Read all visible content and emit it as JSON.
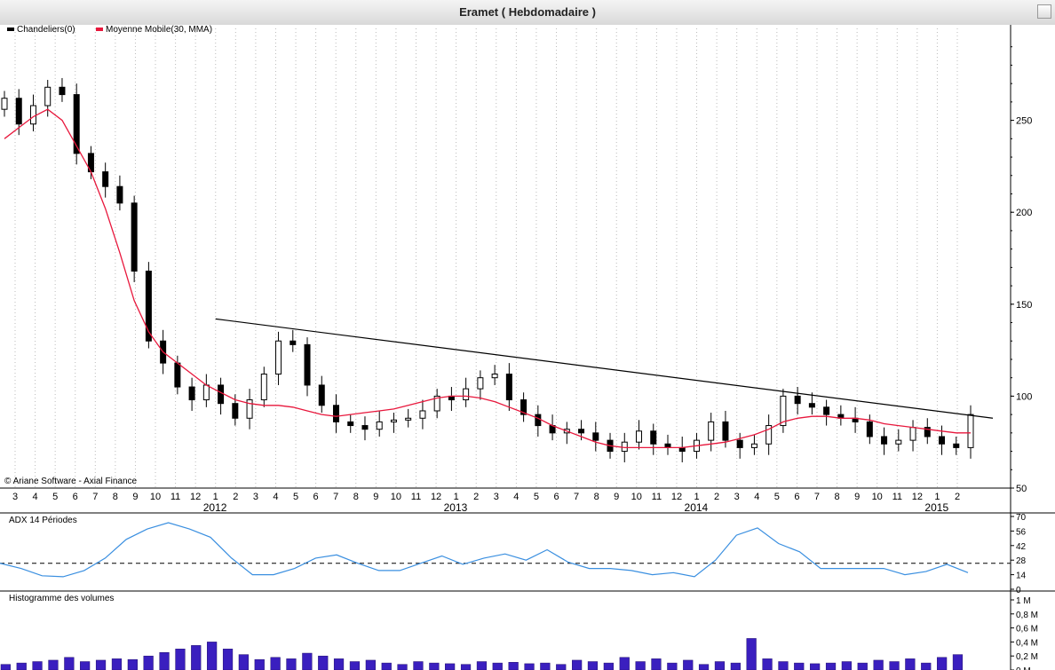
{
  "window": {
    "title": "Eramet  ( Hebdomadaire )"
  },
  "colors": {
    "candle": "#000000",
    "ma": "#e8173c",
    "adx": "#3a8fe0",
    "volume": "#3a1fbf",
    "trendline": "#000000"
  },
  "price_panel": {
    "legend": [
      {
        "label": "Chandeliers(0)",
        "color": "#000000"
      },
      {
        "label": "Moyenne Mobile(30, MMA)",
        "color": "#e8173c"
      }
    ],
    "copyright": "© Ariane Software - Axial Finance"
  },
  "adx_panel": {
    "label": "ADX 14 Périodes"
  },
  "volume_panel": {
    "label": "Histogramme des volumes"
  },
  "chart_data": [
    {
      "type": "candlestick",
      "title": "Eramet  ( Hebdomadaire )",
      "ylim": [
        50,
        300
      ],
      "y_ticks": [
        "250",
        "200",
        "150",
        "100",
        "50"
      ],
      "x_month_ticks": [
        "3",
        "4",
        "5",
        "6",
        "7",
        "8",
        "9",
        "10",
        "11",
        "12",
        "1",
        "2",
        "3",
        "4",
        "5",
        "6",
        "7",
        "8",
        "9",
        "10",
        "11",
        "12",
        "1",
        "2",
        "3",
        "4",
        "5",
        "6",
        "7",
        "8",
        "9",
        "10",
        "11",
        "12",
        "1",
        "2",
        "3",
        "4",
        "5",
        "6",
        "7",
        "8",
        "9",
        "10",
        "11",
        "12",
        "1",
        "2"
      ],
      "x_year_labels": [
        "2012",
        "2013",
        "2014",
        "2015"
      ],
      "close_series": [
        262,
        248,
        258,
        268,
        264,
        232,
        222,
        214,
        205,
        168,
        130,
        118,
        105,
        98,
        106,
        96,
        88,
        98,
        112,
        130,
        128,
        106,
        95,
        86,
        84,
        82,
        86,
        87,
        88,
        92,
        100,
        98,
        104,
        110,
        112,
        98,
        90,
        84,
        80,
        82,
        80,
        76,
        70,
        75,
        81,
        74,
        72,
        70,
        76,
        86,
        76,
        72,
        74,
        84,
        100,
        96,
        94,
        90,
        88,
        86,
        78,
        74,
        76,
        83,
        78,
        74,
        72,
        90
      ],
      "ma_series": [
        240,
        246,
        252,
        256,
        250,
        236,
        222,
        202,
        178,
        152,
        135,
        124,
        118,
        112,
        106,
        102,
        98,
        96,
        95,
        95,
        94,
        92,
        90,
        89,
        90,
        91,
        92,
        93,
        95,
        97,
        99,
        100,
        100,
        99,
        97,
        94,
        91,
        88,
        84,
        81,
        78,
        75,
        73,
        72,
        72,
        72,
        72,
        72,
        73,
        74,
        75,
        77,
        79,
        82,
        86,
        88,
        89,
        89,
        88,
        88,
        87,
        85,
        84,
        83,
        82,
        81,
        80,
        80
      ],
      "series": [
        {
          "name": "Chandeliers(0)",
          "values": "close_series"
        },
        {
          "name": "Moyenne Mobile(30, MMA)",
          "values": "ma_series"
        }
      ],
      "trendline": {
        "from": {
          "period": "2012-01",
          "value": 142
        },
        "to": {
          "period": "2015-02",
          "value": 88
        }
      }
    },
    {
      "type": "line",
      "title": "ADX 14 Périodes",
      "ylim": [
        0,
        70
      ],
      "y_ticks": [
        "70",
        "56",
        "42",
        "28",
        "14",
        "0"
      ],
      "reference_line": 25,
      "values": [
        25,
        20,
        13,
        12,
        18,
        30,
        48,
        58,
        64,
        58,
        50,
        30,
        14,
        14,
        20,
        30,
        33,
        25,
        18,
        18,
        25,
        32,
        24,
        30,
        34,
        28,
        38,
        26,
        20,
        20,
        18,
        14,
        16,
        12,
        28,
        52,
        59,
        44,
        36,
        20,
        20,
        20,
        20,
        14,
        17,
        24,
        16
      ]
    },
    {
      "type": "bar",
      "title": "Histogramme des volumes",
      "ylim": [
        0,
        1
      ],
      "y_ticks": [
        "1 M",
        "0,8 M",
        "0,6 M",
        "0,4 M",
        "0,2 M",
        "0 M"
      ],
      "values": [
        0.08,
        0.1,
        0.12,
        0.14,
        0.18,
        0.12,
        0.14,
        0.16,
        0.15,
        0.2,
        0.25,
        0.3,
        0.35,
        0.4,
        0.3,
        0.22,
        0.15,
        0.18,
        0.16,
        0.24,
        0.2,
        0.16,
        0.12,
        0.14,
        0.1,
        0.08,
        0.12,
        0.1,
        0.09,
        0.08,
        0.12,
        0.1,
        0.11,
        0.09,
        0.1,
        0.08,
        0.14,
        0.12,
        0.1,
        0.18,
        0.12,
        0.16,
        0.1,
        0.14,
        0.08,
        0.12,
        0.1,
        0.45,
        0.16,
        0.12,
        0.1,
        0.09,
        0.1,
        0.12,
        0.1,
        0.14,
        0.12,
        0.16,
        0.1,
        0.18,
        0.22
      ]
    }
  ]
}
